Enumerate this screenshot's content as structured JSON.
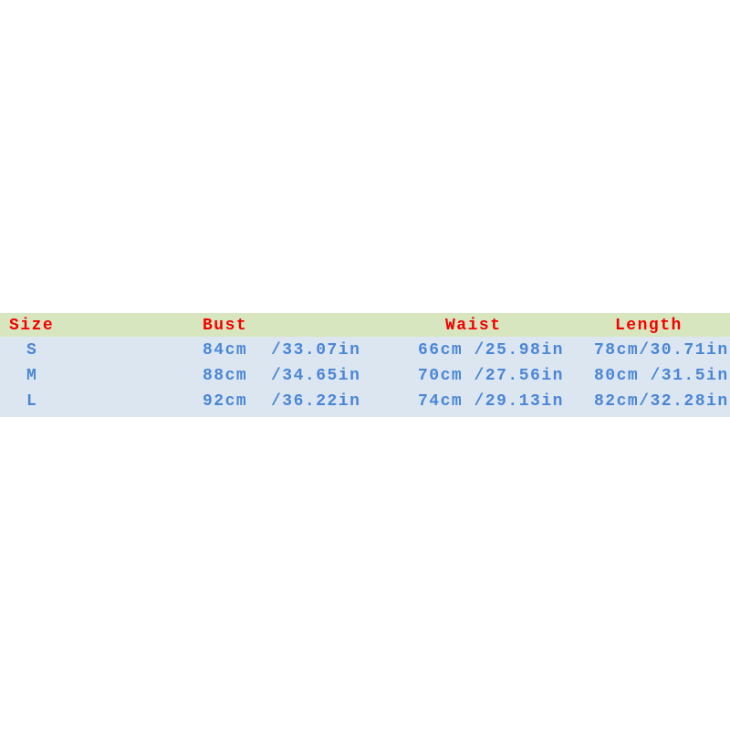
{
  "headers": {
    "size": "Size",
    "bust": "Bust",
    "waist": "Waist",
    "length": "Length"
  },
  "rows": [
    {
      "size": "S",
      "bust_cm": "84cm",
      "bust_in": "/33.07in",
      "waist": "66cm /25.98in",
      "length": "78cm/30.71in"
    },
    {
      "size": "M",
      "bust_cm": "88cm",
      "bust_in": "/34.65in",
      "waist": "70cm /27.56in",
      "length": "80cm /31.5in"
    },
    {
      "size": "L",
      "bust_cm": "92cm",
      "bust_in": "/36.22in",
      "waist": "74cm /29.13in",
      "length": "82cm/32.28in"
    }
  ],
  "colors": {
    "header_bg": "#d8e6bf",
    "body_bg": "#dce6f1",
    "header_text": "#f40000",
    "body_text": "#4a86d6"
  }
}
